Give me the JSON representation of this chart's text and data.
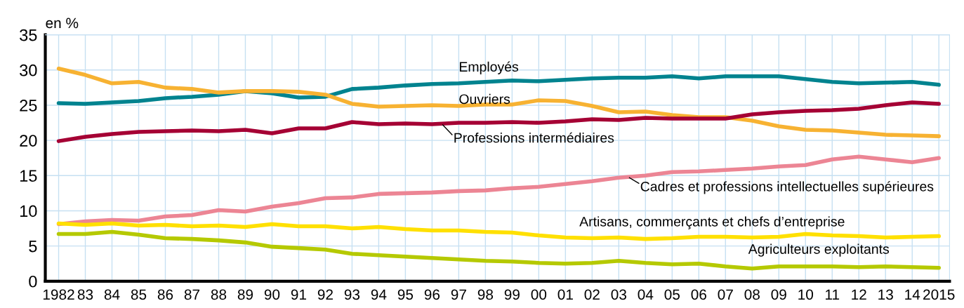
{
  "chart_data": {
    "type": "line",
    "ylabel": "en %",
    "categories": [
      "1982",
      "83",
      "84",
      "85",
      "86",
      "87",
      "88",
      "89",
      "90",
      "91",
      "92",
      "93",
      "94",
      "95",
      "96",
      "97",
      "98",
      "99",
      "00",
      "01",
      "02",
      "03",
      "04",
      "05",
      "06",
      "07",
      "08",
      "09",
      "10",
      "11",
      "12",
      "13",
      "14",
      "2015"
    ],
    "ylim": [
      0,
      35
    ],
    "yticks": [
      0,
      5,
      10,
      15,
      20,
      25,
      30,
      35
    ],
    "grid": true,
    "legend": false,
    "marker": "none",
    "line_style": "solid",
    "series": [
      {
        "name": "Employés",
        "color": "#00838f",
        "values": [
          25.3,
          25.2,
          25.4,
          25.6,
          26.0,
          26.2,
          26.5,
          27.0,
          26.7,
          26.1,
          26.2,
          27.3,
          27.5,
          27.8,
          28.0,
          28.1,
          28.3,
          28.5,
          28.4,
          28.6,
          28.8,
          28.9,
          28.9,
          29.1,
          28.8,
          29.1,
          29.1,
          29.1,
          28.7,
          28.3,
          28.1,
          28.2,
          28.3,
          27.9
        ]
      },
      {
        "name": "Ouvriers",
        "color": "#f7b232",
        "values": [
          30.2,
          29.3,
          28.1,
          28.3,
          27.5,
          27.3,
          26.8,
          27.0,
          27.0,
          26.9,
          26.5,
          25.2,
          24.8,
          24.9,
          25.0,
          24.9,
          25.1,
          25.1,
          25.7,
          25.6,
          24.9,
          24.0,
          24.1,
          23.6,
          23.3,
          23.3,
          22.8,
          22.0,
          21.5,
          21.4,
          21.1,
          20.8,
          20.7,
          20.6
        ]
      },
      {
        "name": "Professions intermédiaires",
        "color": "#a50034",
        "values": [
          19.9,
          20.5,
          20.9,
          21.2,
          21.3,
          21.4,
          21.3,
          21.5,
          21.0,
          21.7,
          21.7,
          22.6,
          22.3,
          22.4,
          22.3,
          22.5,
          22.5,
          22.6,
          22.5,
          22.7,
          23.0,
          22.9,
          23.2,
          23.1,
          23.1,
          23.1,
          23.7,
          24.0,
          24.2,
          24.3,
          24.5,
          25.0,
          25.4,
          25.2
        ]
      },
      {
        "name": "Cadres et professions intellectuelles supérieures",
        "color": "#ec8594",
        "values": [
          8.1,
          8.5,
          8.7,
          8.6,
          9.2,
          9.4,
          10.1,
          9.9,
          10.6,
          11.1,
          11.8,
          11.9,
          12.4,
          12.5,
          12.6,
          12.8,
          12.9,
          13.2,
          13.4,
          13.8,
          14.2,
          14.7,
          15.0,
          15.5,
          15.6,
          15.8,
          16.0,
          16.3,
          16.5,
          17.3,
          17.7,
          17.3,
          16.9,
          17.5
        ]
      },
      {
        "name": "Artisans, commerçants et chefs d’entreprise",
        "color": "#ffe000",
        "values": [
          8.2,
          8.0,
          8.2,
          7.9,
          8.0,
          7.8,
          7.9,
          7.7,
          8.1,
          7.8,
          7.8,
          7.5,
          7.7,
          7.4,
          7.2,
          7.2,
          7.0,
          6.9,
          6.5,
          6.2,
          6.1,
          6.2,
          6.0,
          6.1,
          6.3,
          6.3,
          6.2,
          6.3,
          6.7,
          6.5,
          6.4,
          6.2,
          6.3,
          6.4
        ]
      },
      {
        "name": "Agriculteurs exploitants",
        "color": "#b5c900",
        "values": [
          6.7,
          6.7,
          7.0,
          6.6,
          6.1,
          6.0,
          5.8,
          5.5,
          4.9,
          4.7,
          4.5,
          3.9,
          3.7,
          3.5,
          3.3,
          3.1,
          2.9,
          2.8,
          2.6,
          2.5,
          2.6,
          2.9,
          2.6,
          2.4,
          2.5,
          2.1,
          1.8,
          2.1,
          2.1,
          2.1,
          2.0,
          2.1,
          2.0,
          1.9
        ]
      }
    ]
  }
}
